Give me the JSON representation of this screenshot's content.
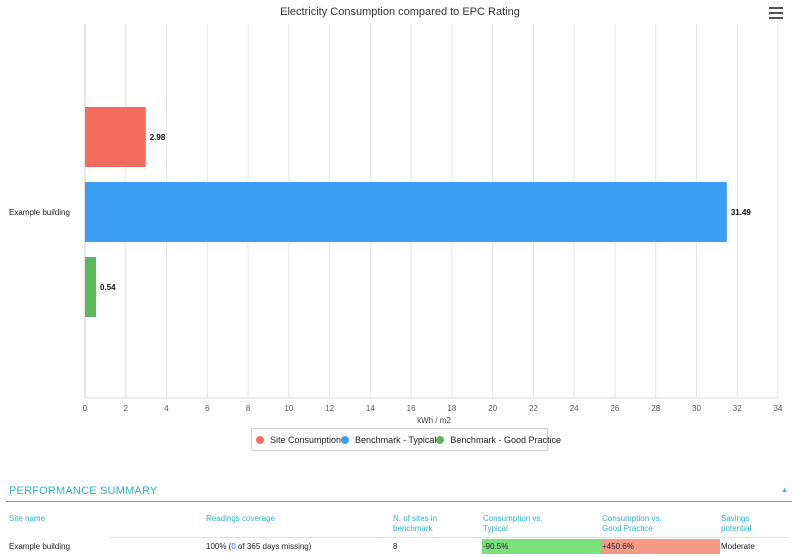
{
  "chart_data": {
    "type": "bar",
    "orientation": "horizontal",
    "title": "Electricity Consumption compared to EPC Rating",
    "categories": [
      "Example building"
    ],
    "series": [
      {
        "name": "Site Consumption",
        "values": [
          2.98
        ],
        "color": "#f56b5f"
      },
      {
        "name": "Benchmark - Typical",
        "values": [
          31.49
        ],
        "color": "#3a9ef2"
      },
      {
        "name": "Benchmark - Good Practice",
        "values": [
          0.54
        ],
        "color": "#5cb85c"
      }
    ],
    "xlabel": "kWh / m2",
    "xlim": [
      0,
      34
    ],
    "xticks": [
      0,
      2,
      4,
      6,
      8,
      10,
      12,
      14,
      16,
      18,
      20,
      22,
      24,
      26,
      28,
      30,
      32,
      34
    ],
    "grid": true,
    "legend": "bottom-center"
  },
  "summary": {
    "title": "PERFORMANCE SUMMARY",
    "collapse_icon": "caret-up-icon",
    "headers": {
      "site_name": "Site name",
      "readings_coverage": "Readings coverage",
      "n_sites": [
        "N. of sites in",
        "benchmark"
      ],
      "cons_typical": [
        "Consumption vs.",
        "Typical"
      ],
      "cons_good": [
        "Consumption vs.",
        "Good Practice"
      ],
      "savings": [
        "Savings",
        "potential"
      ]
    },
    "row": {
      "site_name": "Example building",
      "coverage_prefix": "100% (",
      "coverage_missing": "0",
      "coverage_suffix": " of 365 days missing)",
      "n_sites": "8",
      "cons_typical": "-90.5%",
      "cons_good": "+450.6%",
      "savings": "Moderate"
    }
  },
  "menu_icon": "hamburger-menu-icon"
}
